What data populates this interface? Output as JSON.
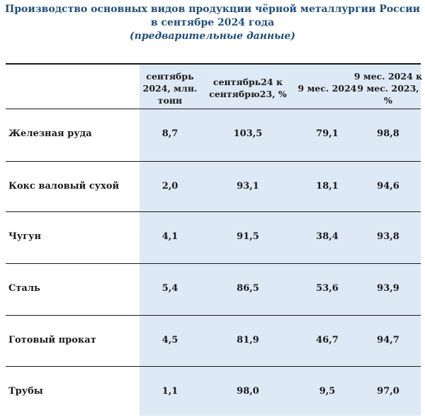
{
  "title": {
    "line1": "Производство основных видов продукции чёрной металлургии России",
    "line2": "в сентябре 2024 года",
    "line3": "(предварительные данные)"
  },
  "table": {
    "headers": [
      [
        "сентябрь",
        "2024, млн.",
        "тонн"
      ],
      [
        "сентябрь24 к",
        "сентябрю23, %"
      ],
      [
        "9 мес. 2024"
      ],
      [
        "9 мес. 2024 к",
        "9 мес. 2023,",
        "%"
      ]
    ],
    "rows": [
      {
        "label": "Железная руда",
        "values": [
          "8,7",
          "103,5",
          "79,1",
          "98,8"
        ]
      },
      {
        "label": "Кокс валовый сухой",
        "values": [
          "2,0",
          "93,1",
          "18,1",
          "94,6"
        ]
      },
      {
        "label": "Чугун",
        "values": [
          "4,1",
          "91,5",
          "38,4",
          "93,8"
        ]
      },
      {
        "label": "Сталь",
        "values": [
          "5,4",
          "86,5",
          "53,6",
          "93,9"
        ]
      },
      {
        "label": "Готовый прокат",
        "values": [
          "4,5",
          "81,9",
          "46,7",
          "94,7"
        ]
      },
      {
        "label": "Трубы",
        "values": [
          "1,1",
          "98,0",
          "9,5",
          "97,0"
        ]
      }
    ]
  }
}
